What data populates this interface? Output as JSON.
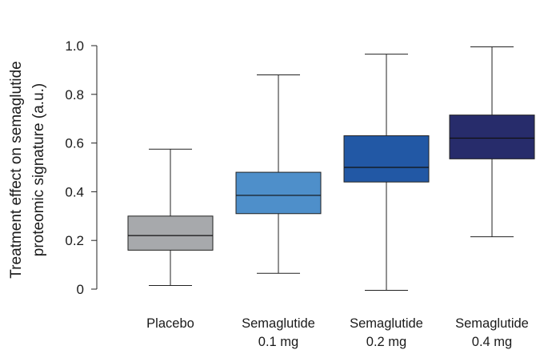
{
  "chart_data": {
    "type": "box",
    "ylabel_lines": [
      "Treatment effect on semaglutide",
      "proteomic signature (a.u.)"
    ],
    "xlabel": "",
    "ylim": [
      0,
      1.0
    ],
    "y_ticks": [
      0,
      0.2,
      0.4,
      0.6,
      0.8,
      1.0
    ],
    "y_tick_labels": [
      "0",
      "0.2",
      "0.4",
      "0.6",
      "0.8",
      "1.0"
    ],
    "grid": false,
    "groups": [
      {
        "label_lines": [
          "Placebo"
        ],
        "min": 0.015,
        "q1": 0.16,
        "median": 0.22,
        "q3": 0.3,
        "max": 0.575,
        "color": "#a7a9ac"
      },
      {
        "label_lines": [
          "Semaglutide",
          "0.1 mg"
        ],
        "min": 0.065,
        "q1": 0.31,
        "median": 0.385,
        "q3": 0.48,
        "max": 0.88,
        "color": "#4e8fca"
      },
      {
        "label_lines": [
          "Semaglutide",
          "0.2 mg"
        ],
        "min": -0.005,
        "q1": 0.44,
        "median": 0.5,
        "q3": 0.63,
        "max": 0.965,
        "color": "#2258a5"
      },
      {
        "label_lines": [
          "Semaglutide",
          "0.4 mg"
        ],
        "min": 0.215,
        "q1": 0.535,
        "median": 0.62,
        "q3": 0.715,
        "max": 0.995,
        "color": "#272c6b"
      }
    ]
  }
}
